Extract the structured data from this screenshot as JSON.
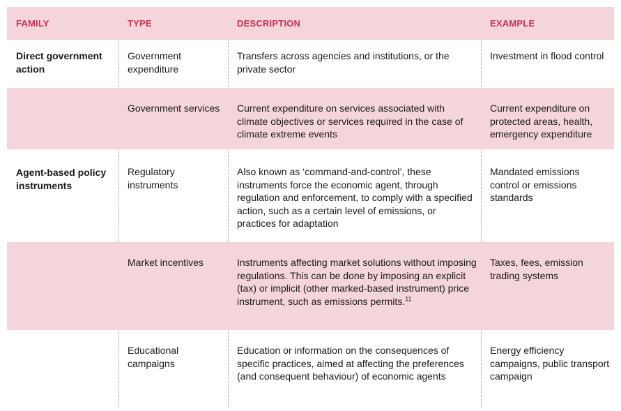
{
  "headers": {
    "family": "FAMILY",
    "type": "TYPE",
    "description": "DESCRIPTION",
    "example": "EXAMPLE"
  },
  "rows": [
    {
      "family": "Direct government action",
      "type": "Government expenditure",
      "description": "Transfers across agencies and institutions, or the private sector",
      "example": "Investment in flood control"
    },
    {
      "family": "",
      "type": "Government services",
      "description": "Current expenditure on services associated with climate objectives or services required in the case of climate extreme events",
      "example": "Current expenditure on protected areas, health, emergency expenditure"
    },
    {
      "family": "Agent-based policy instruments",
      "type": "Regulatory instruments",
      "description": "Also known as ‘command-and-control’, these instruments force the economic agent, through regulation and enforcement, to comply with a specified action, such as a certain level of emissions, or practices for adaptation",
      "example": "Mandated emissions control or emissions standards"
    },
    {
      "family": "",
      "type": "Market incentives",
      "description": "Instruments affecting market solutions without imposing regulations.  This can be done by imposing an explicit (tax) or implicit (other marked-based instrument) price instrument, such as emissions permits.",
      "footnote": "11",
      "example": "Taxes, fees, emission trading systems"
    },
    {
      "family": "",
      "type": "Educational campaigns",
      "description": "Education or information on the consequences of specific practices, aimed at affecting the preferences (and consequent behaviour) of economic agents",
      "example": "Energy efficiency campaigns, public transport campaign"
    }
  ]
}
